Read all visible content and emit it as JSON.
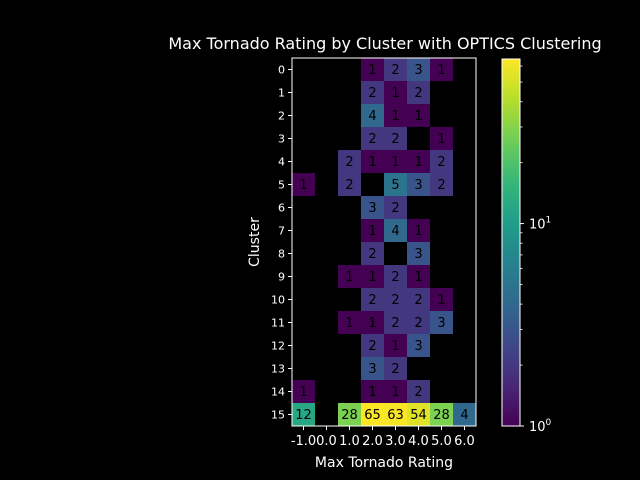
{
  "chart_data": {
    "type": "heatmap",
    "title": "Max Tornado Rating by Cluster with OPTICS Clustering",
    "xlabel": "Max Tornado Rating",
    "ylabel": "Cluster",
    "x_categories": [
      "-1.0",
      "0.0",
      "1.0",
      "2.0",
      "3.0",
      "4.0",
      "5.0",
      "6.0"
    ],
    "y_categories": [
      "0",
      "1",
      "2",
      "3",
      "4",
      "5",
      "6",
      "7",
      "8",
      "9",
      "10",
      "11",
      "12",
      "13",
      "14",
      "15"
    ],
    "values": [
      [
        null,
        null,
        null,
        1,
        2,
        3,
        1,
        null
      ],
      [
        null,
        null,
        null,
        2,
        1,
        2,
        null,
        null
      ],
      [
        null,
        null,
        null,
        4,
        1,
        1,
        null,
        null
      ],
      [
        null,
        null,
        null,
        2,
        2,
        null,
        1,
        null
      ],
      [
        null,
        null,
        2,
        1,
        1,
        1,
        2,
        null
      ],
      [
        1,
        null,
        2,
        null,
        5,
        3,
        2,
        null
      ],
      [
        null,
        null,
        null,
        3,
        2,
        null,
        null,
        null
      ],
      [
        null,
        null,
        null,
        1,
        4,
        1,
        null,
        null
      ],
      [
        null,
        null,
        null,
        2,
        null,
        3,
        null,
        null
      ],
      [
        null,
        null,
        1,
        1,
        2,
        1,
        null,
        null
      ],
      [
        null,
        null,
        null,
        2,
        2,
        2,
        1,
        null
      ],
      [
        null,
        null,
        1,
        1,
        2,
        2,
        3,
        null
      ],
      [
        null,
        null,
        null,
        2,
        1,
        3,
        null,
        null
      ],
      [
        null,
        null,
        null,
        3,
        2,
        null,
        null,
        null
      ],
      [
        1,
        null,
        null,
        1,
        1,
        2,
        null,
        null
      ],
      [
        12,
        null,
        28,
        65,
        63,
        54,
        28,
        4
      ]
    ],
    "colorscale": "viridis",
    "color_scale_type": "log",
    "color_range": [
      1,
      65
    ],
    "colorbar": {
      "ticks": [
        {
          "base": "10",
          "exp": "0",
          "value": 1
        },
        {
          "base": "10",
          "exp": "1",
          "value": 10
        }
      ]
    }
  }
}
